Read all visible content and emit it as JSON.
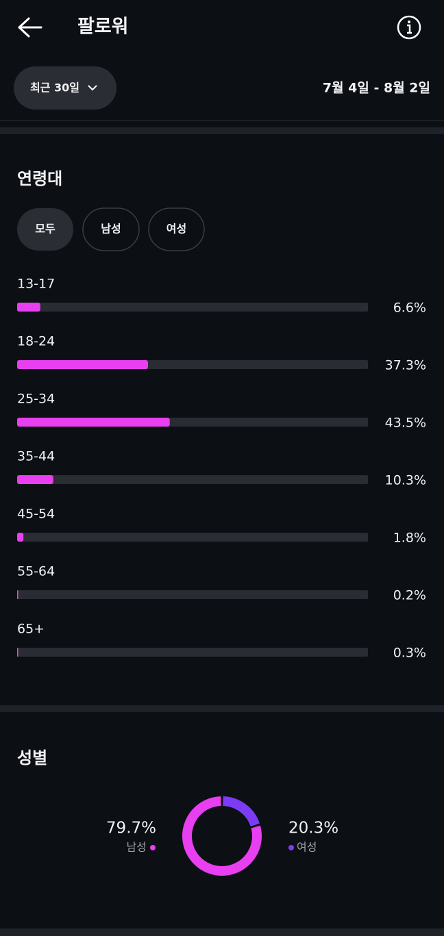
{
  "header": {
    "title": "팔로워",
    "range_button": "최근 30일",
    "date_range": "7월 4일 - 8월 2일"
  },
  "age": {
    "title": "연령대",
    "tabs": [
      "모두",
      "남성",
      "여성"
    ],
    "chart": {
      "type": "bar",
      "categories": [
        "13-17",
        "18-24",
        "25-34",
        "35-44",
        "45-54",
        "55-64",
        "65+"
      ],
      "values": [
        6.6,
        37.3,
        43.5,
        10.3,
        1.8,
        0.2,
        0.3
      ],
      "value_labels": [
        "6.6%",
        "37.3%",
        "43.5%",
        "10.3%",
        "1.8%",
        "0.2%",
        "0.3%"
      ],
      "xlim": [
        0,
        100
      ],
      "color": "#e83ff0",
      "track_color": "#2a2c33"
    }
  },
  "gender": {
    "title": "성별",
    "chart": {
      "type": "donut",
      "categories": [
        "남성",
        "여성"
      ],
      "values": [
        79.7,
        20.3
      ],
      "value_labels": [
        "79.7%",
        "20.3%"
      ],
      "colors": [
        "#e83ff0",
        "#7c3cf6"
      ]
    }
  }
}
